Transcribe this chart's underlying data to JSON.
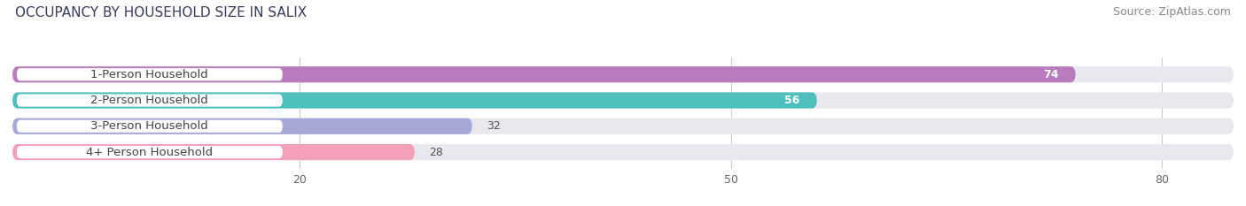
{
  "title": "OCCUPANCY BY HOUSEHOLD SIZE IN SALIX",
  "source": "Source: ZipAtlas.com",
  "categories": [
    "1-Person Household",
    "2-Person Household",
    "3-Person Household",
    "4+ Person Household"
  ],
  "values": [
    74,
    56,
    32,
    28
  ],
  "bar_colors": [
    "#b87cbe",
    "#4dbfbc",
    "#a8a8d8",
    "#f4a0b8"
  ],
  "label_colors": [
    "white",
    "white",
    "black",
    "black"
  ],
  "xlim": [
    0,
    85
  ],
  "xticks": [
    20,
    50,
    80
  ],
  "bg_color": "#ffffff",
  "bar_bg_color": "#e8e8ee",
  "title_fontsize": 11,
  "source_fontsize": 9,
  "label_fontsize": 9.5,
  "value_fontsize": 9,
  "tick_fontsize": 9,
  "bar_height": 0.62,
  "figsize": [
    14.06,
    2.33
  ],
  "dpi": 100
}
